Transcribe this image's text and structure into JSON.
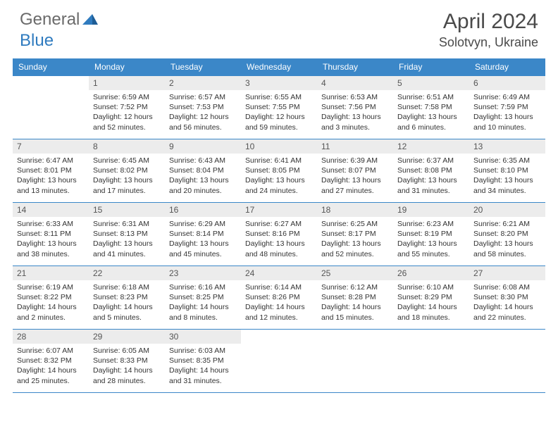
{
  "logo": {
    "general": "General",
    "blue": "Blue"
  },
  "title": "April 2024",
  "location": "Solotvyn, Ukraine",
  "colors": {
    "header_bg": "#3b87c8",
    "header_text": "#ffffff",
    "daynum_bg": "#ececec",
    "border": "#3b87c8"
  },
  "dayHeaders": [
    "Sunday",
    "Monday",
    "Tuesday",
    "Wednesday",
    "Thursday",
    "Friday",
    "Saturday"
  ],
  "weeks": [
    [
      null,
      {
        "n": "1",
        "sr": "Sunrise: 6:59 AM",
        "ss": "Sunset: 7:52 PM",
        "dl": "Daylight: 12 hours and 52 minutes."
      },
      {
        "n": "2",
        "sr": "Sunrise: 6:57 AM",
        "ss": "Sunset: 7:53 PM",
        "dl": "Daylight: 12 hours and 56 minutes."
      },
      {
        "n": "3",
        "sr": "Sunrise: 6:55 AM",
        "ss": "Sunset: 7:55 PM",
        "dl": "Daylight: 12 hours and 59 minutes."
      },
      {
        "n": "4",
        "sr": "Sunrise: 6:53 AM",
        "ss": "Sunset: 7:56 PM",
        "dl": "Daylight: 13 hours and 3 minutes."
      },
      {
        "n": "5",
        "sr": "Sunrise: 6:51 AM",
        "ss": "Sunset: 7:58 PM",
        "dl": "Daylight: 13 hours and 6 minutes."
      },
      {
        "n": "6",
        "sr": "Sunrise: 6:49 AM",
        "ss": "Sunset: 7:59 PM",
        "dl": "Daylight: 13 hours and 10 minutes."
      }
    ],
    [
      {
        "n": "7",
        "sr": "Sunrise: 6:47 AM",
        "ss": "Sunset: 8:01 PM",
        "dl": "Daylight: 13 hours and 13 minutes."
      },
      {
        "n": "8",
        "sr": "Sunrise: 6:45 AM",
        "ss": "Sunset: 8:02 PM",
        "dl": "Daylight: 13 hours and 17 minutes."
      },
      {
        "n": "9",
        "sr": "Sunrise: 6:43 AM",
        "ss": "Sunset: 8:04 PM",
        "dl": "Daylight: 13 hours and 20 minutes."
      },
      {
        "n": "10",
        "sr": "Sunrise: 6:41 AM",
        "ss": "Sunset: 8:05 PM",
        "dl": "Daylight: 13 hours and 24 minutes."
      },
      {
        "n": "11",
        "sr": "Sunrise: 6:39 AM",
        "ss": "Sunset: 8:07 PM",
        "dl": "Daylight: 13 hours and 27 minutes."
      },
      {
        "n": "12",
        "sr": "Sunrise: 6:37 AM",
        "ss": "Sunset: 8:08 PM",
        "dl": "Daylight: 13 hours and 31 minutes."
      },
      {
        "n": "13",
        "sr": "Sunrise: 6:35 AM",
        "ss": "Sunset: 8:10 PM",
        "dl": "Daylight: 13 hours and 34 minutes."
      }
    ],
    [
      {
        "n": "14",
        "sr": "Sunrise: 6:33 AM",
        "ss": "Sunset: 8:11 PM",
        "dl": "Daylight: 13 hours and 38 minutes."
      },
      {
        "n": "15",
        "sr": "Sunrise: 6:31 AM",
        "ss": "Sunset: 8:13 PM",
        "dl": "Daylight: 13 hours and 41 minutes."
      },
      {
        "n": "16",
        "sr": "Sunrise: 6:29 AM",
        "ss": "Sunset: 8:14 PM",
        "dl": "Daylight: 13 hours and 45 minutes."
      },
      {
        "n": "17",
        "sr": "Sunrise: 6:27 AM",
        "ss": "Sunset: 8:16 PM",
        "dl": "Daylight: 13 hours and 48 minutes."
      },
      {
        "n": "18",
        "sr": "Sunrise: 6:25 AM",
        "ss": "Sunset: 8:17 PM",
        "dl": "Daylight: 13 hours and 52 minutes."
      },
      {
        "n": "19",
        "sr": "Sunrise: 6:23 AM",
        "ss": "Sunset: 8:19 PM",
        "dl": "Daylight: 13 hours and 55 minutes."
      },
      {
        "n": "20",
        "sr": "Sunrise: 6:21 AM",
        "ss": "Sunset: 8:20 PM",
        "dl": "Daylight: 13 hours and 58 minutes."
      }
    ],
    [
      {
        "n": "21",
        "sr": "Sunrise: 6:19 AM",
        "ss": "Sunset: 8:22 PM",
        "dl": "Daylight: 14 hours and 2 minutes."
      },
      {
        "n": "22",
        "sr": "Sunrise: 6:18 AM",
        "ss": "Sunset: 8:23 PM",
        "dl": "Daylight: 14 hours and 5 minutes."
      },
      {
        "n": "23",
        "sr": "Sunrise: 6:16 AM",
        "ss": "Sunset: 8:25 PM",
        "dl": "Daylight: 14 hours and 8 minutes."
      },
      {
        "n": "24",
        "sr": "Sunrise: 6:14 AM",
        "ss": "Sunset: 8:26 PM",
        "dl": "Daylight: 14 hours and 12 minutes."
      },
      {
        "n": "25",
        "sr": "Sunrise: 6:12 AM",
        "ss": "Sunset: 8:28 PM",
        "dl": "Daylight: 14 hours and 15 minutes."
      },
      {
        "n": "26",
        "sr": "Sunrise: 6:10 AM",
        "ss": "Sunset: 8:29 PM",
        "dl": "Daylight: 14 hours and 18 minutes."
      },
      {
        "n": "27",
        "sr": "Sunrise: 6:08 AM",
        "ss": "Sunset: 8:30 PM",
        "dl": "Daylight: 14 hours and 22 minutes."
      }
    ],
    [
      {
        "n": "28",
        "sr": "Sunrise: 6:07 AM",
        "ss": "Sunset: 8:32 PM",
        "dl": "Daylight: 14 hours and 25 minutes."
      },
      {
        "n": "29",
        "sr": "Sunrise: 6:05 AM",
        "ss": "Sunset: 8:33 PM",
        "dl": "Daylight: 14 hours and 28 minutes."
      },
      {
        "n": "30",
        "sr": "Sunrise: 6:03 AM",
        "ss": "Sunset: 8:35 PM",
        "dl": "Daylight: 14 hours and 31 minutes."
      },
      null,
      null,
      null,
      null
    ]
  ]
}
